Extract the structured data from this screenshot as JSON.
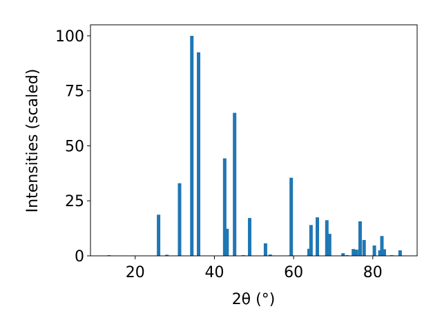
{
  "chart_data": {
    "type": "bar",
    "xlabel": "2θ (°)",
    "ylabel": "Intensities (scaled)",
    "color": "#1f77b4",
    "x": [
      13.4,
      25.9,
      28.0,
      31.2,
      34.3,
      36.0,
      42.6,
      43.2,
      45.1,
      47.3,
      48.9,
      52.9,
      54.1,
      59.0,
      59.4,
      63.9,
      64.4,
      66.0,
      68.4,
      69.1,
      72.5,
      73.5,
      75.1,
      75.9,
      76.8,
      77.8,
      80.4,
      81.8,
      82.3,
      82.9,
      84.8,
      86.9
    ],
    "values": [
      0.3,
      18.7,
      0.5,
      33,
      100,
      92.5,
      44.3,
      12.3,
      65,
      0.3,
      17.2,
      5.7,
      0.6,
      0.2,
      35.5,
      3.2,
      14,
      17.5,
      16.2,
      10,
      1.2,
      0.3,
      3.1,
      2.8,
      15.7,
      7.2,
      4.7,
      2.5,
      9,
      3,
      0.3,
      2.5
    ],
    "xlim": [
      8.7,
      91.2
    ],
    "ylim": [
      0,
      105
    ],
    "xticks": [
      20,
      40,
      60,
      80
    ],
    "yticks": [
      0,
      25,
      50,
      75,
      100
    ]
  }
}
